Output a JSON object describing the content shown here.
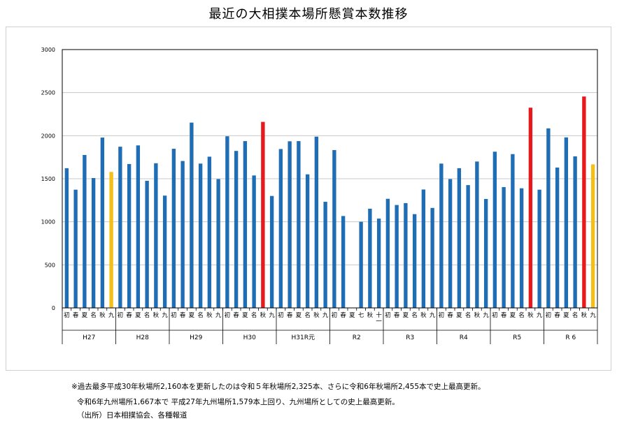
{
  "title": "最近の大相撲本場所懸賞本数推移",
  "notes": {
    "line1": "※過去最多平成30年秋場所2,160本を更新したのは令和５年秋場所2,325本、さらに令和6年秋場所2,455本で史上最高更新。",
    "line2": "令和6年九州場所1,667本で 平成27年九州場所1,579本上回り、九州場所としての史上最高更新。",
    "line3": "（出所）日本相撲協会、各種報道"
  },
  "colors": {
    "normal": "#1f6db5",
    "autumn_record": "#e8191c",
    "kyushu_record": "#f5bf1a",
    "grid": "#c8c8c8",
    "axis": "#000000"
  },
  "chart_data": {
    "type": "bar",
    "title": "最近の大相撲本場所懸賞本数推移",
    "xlabel": "",
    "ylabel": "",
    "ylim": [
      0,
      3000
    ],
    "yticks": [
      0,
      500,
      1000,
      1500,
      2000,
      2500,
      3000
    ],
    "grid": true,
    "legend": "none",
    "groups": [
      {
        "label": "H27",
        "tournaments": [
          "初",
          "春",
          "夏",
          "名",
          "秋",
          "九"
        ],
        "values": [
          1622,
          1373,
          1776,
          1508,
          1978,
          1579
        ],
        "highlights": [
          "normal",
          "normal",
          "normal",
          "normal",
          "normal",
          "kyushu_record"
        ]
      },
      {
        "label": "H28",
        "tournaments": [
          "初",
          "春",
          "夏",
          "名",
          "秋",
          "九"
        ],
        "values": [
          1872,
          1671,
          1887,
          1476,
          1680,
          1304
        ],
        "highlights": [
          "normal",
          "normal",
          "normal",
          "normal",
          "normal",
          "normal"
        ]
      },
      {
        "label": "H29",
        "tournaments": [
          "初",
          "春",
          "夏",
          "名",
          "秋",
          "九"
        ],
        "values": [
          1848,
          1706,
          2152,
          1676,
          1756,
          1496
        ],
        "highlights": [
          "normal",
          "normal",
          "normal",
          "normal",
          "normal",
          "normal"
        ]
      },
      {
        "label": "H30",
        "tournaments": [
          "初",
          "春",
          "夏",
          "名",
          "秋",
          "九"
        ],
        "values": [
          1993,
          1823,
          1937,
          1538,
          2160,
          1300
        ],
        "highlights": [
          "normal",
          "normal",
          "normal",
          "normal",
          "autumn_record",
          "normal"
        ]
      },
      {
        "label": "H31R元",
        "tournaments": [
          "初",
          "春",
          "夏",
          "名",
          "秋",
          "九"
        ],
        "values": [
          1845,
          1935,
          1937,
          1551,
          1989,
          1232
        ],
        "highlights": [
          "normal",
          "normal",
          "normal",
          "normal",
          "normal",
          "normal"
        ]
      },
      {
        "label": "R2",
        "tournaments": [
          "初",
          "春",
          "夏",
          "七",
          "秋",
          "十一"
        ],
        "values": [
          1833,
          1067,
          null,
          1000,
          1152,
          1037
        ],
        "highlights": [
          "normal",
          "normal",
          "normal",
          "normal",
          "normal",
          "normal"
        ]
      },
      {
        "label": "R3",
        "tournaments": [
          "初",
          "春",
          "夏",
          "名",
          "秋",
          "九"
        ],
        "values": [
          1267,
          1195,
          1217,
          1089,
          1375,
          1161
        ],
        "highlights": [
          "normal",
          "normal",
          "normal",
          "normal",
          "normal",
          "normal"
        ]
      },
      {
        "label": "R4",
        "tournaments": [
          "初",
          "春",
          "夏",
          "名",
          "秋",
          "九"
        ],
        "values": [
          1676,
          1496,
          1622,
          1426,
          1700,
          1265
        ],
        "highlights": [
          "normal",
          "normal",
          "normal",
          "normal",
          "normal",
          "normal"
        ]
      },
      {
        "label": "R5",
        "tournaments": [
          "初",
          "春",
          "夏",
          "名",
          "秋",
          "九"
        ],
        "values": [
          1814,
          1403,
          1786,
          1389,
          2325,
          1373
        ],
        "highlights": [
          "normal",
          "normal",
          "normal",
          "normal",
          "autumn_record",
          "normal"
        ]
      },
      {
        "label": "R 6",
        "tournaments": [
          "初",
          "春",
          "夏",
          "名",
          "秋",
          "九"
        ],
        "values": [
          2085,
          1630,
          1980,
          1760,
          2455,
          1667
        ],
        "highlights": [
          "normal",
          "normal",
          "normal",
          "normal",
          "autumn_record",
          "kyushu_record"
        ]
      }
    ]
  }
}
